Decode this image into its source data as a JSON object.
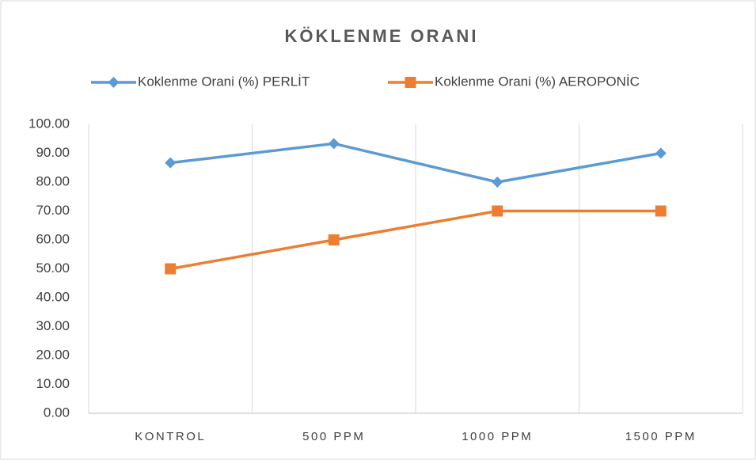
{
  "chart_data": {
    "type": "line",
    "title": "KÖKLENME ORANI",
    "categories": [
      "KONTROL",
      "500 PPM",
      "1000 PPM",
      "1500 PPM"
    ],
    "series": [
      {
        "name": "Koklenme Orani (%) PERLİT",
        "color": "#5b9bd5",
        "marker": "diamond",
        "values": [
          86.67,
          93.33,
          80,
          90
        ]
      },
      {
        "name": "Koklenme Orani (%) AEROPONİC",
        "color": "#ed7d31",
        "marker": "square",
        "values": [
          50,
          60,
          70,
          70
        ]
      }
    ],
    "ylim": [
      0,
      100
    ],
    "yticks": [
      {
        "value": 0,
        "label": "0.00"
      },
      {
        "value": 10,
        "label": "10.00"
      },
      {
        "value": 20,
        "label": "20.00"
      },
      {
        "value": 30,
        "label": "30.00"
      },
      {
        "value": 40,
        "label": "40.00"
      },
      {
        "value": 50,
        "label": "50.00"
      },
      {
        "value": 60,
        "label": "60.00"
      },
      {
        "value": 70,
        "label": "70.00"
      },
      {
        "value": 80,
        "label": "80.00"
      },
      {
        "value": 90,
        "label": "90.00"
      },
      {
        "value": 100,
        "label": "100.00"
      }
    ],
    "legend": "top",
    "grid": "x"
  }
}
